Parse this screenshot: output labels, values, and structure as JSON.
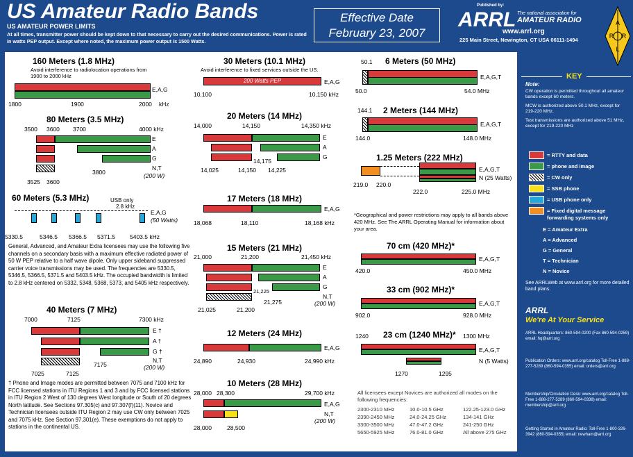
{
  "title": "US Amateur Radio Bands",
  "subtitle": "US AMATEUR POWER LIMITS",
  "intro": "At all times, transmitter power should be kept down to that necessary to carry out the desired communications. Power is rated in watts PEP output. Except where noted, the maximum power output is 1500 Watts.",
  "effective": {
    "line1": "Effective Date",
    "line2": "February 23, 2007"
  },
  "publisher": {
    "published_by": "Published by:",
    "name": "ARRL",
    "tagline1": "The national association for",
    "tagline2": "AMATEUR RADIO",
    "web": "www.arrl.org",
    "address": "225 Main Street, Newington, CT  USA  06111-1494",
    "emblem": [
      "A",
      "R",
      "R",
      "L"
    ]
  },
  "bands": {
    "b160": {
      "title": "160 Meters (1.8 MHz)",
      "note": "Avoid interference to radiolocation operations from 1900 to 2000 kHz",
      "lic": "E,A,G",
      "ticks": [
        "1800",
        "1900",
        "2000"
      ],
      "unit": "kHz"
    },
    "b80": {
      "title": "80 Meters (3.5 MHz)",
      "top": [
        "3500",
        "3600",
        "3700",
        "4000 kHz"
      ],
      "lic": [
        "E",
        "A",
        "G",
        "N,T",
        "(200 W)"
      ],
      "bottom": [
        "3525",
        "3600",
        "3800"
      ]
    },
    "b60": {
      "title": "60 Meters (5.3 MHz)",
      "usb": "USB only",
      "bw": "2.8 kHz",
      "lic": "E,A,G",
      "pw": "(50 Watts)",
      "ticks": [
        "5330.5",
        "5346.5",
        "5366.5",
        "5371.5",
        "5403.5 kHz"
      ],
      "text": "General, Advanced, and Amateur Extra licensees may use the following five channels on a secondary basis with a maximum effective radiated power of 50 W PEP relative to a half wave dipole. Only upper sideband suppressed carrier voice transmissions may be used. The frequencies are 5330.5, 5346.5, 5366.5, 5371.5 and 5403.5 kHz. The occupied bandwidth is limited to 2.8 kHz centered on 5332, 5348, 5368, 5373, and 5405 kHz respectively."
    },
    "b40": {
      "title": "40 Meters (7 MHz)",
      "top": [
        "7000",
        "7125",
        "7300  kHz"
      ],
      "lic": [
        "E †",
        "A †",
        "G †",
        "N,T",
        "(200 W)"
      ],
      "bottom": [
        "7025",
        "7125",
        "7175"
      ]
    },
    "foot": "† Phone and Image modes are permitted between 7075 and 7100 kHz for FCC licensed stations in ITU Regions 1 and 3 and by FCC licensed stations in ITU Region 2 West of 130 degrees West longitude or South of 20 degrees North latitude. See Sections 97.305(c) and 97.307(f)(11). Novice and Technician licensees outside ITU Region 2 may use CW only between 7025 and 7075 kHz. See Section 97.301(e). These exemptions do not apply to stations in the continental US.",
    "b30": {
      "title": "30 Meters (10.1 MHz)",
      "note": "Avoid interference to fixed services outside the US.",
      "bar": "200 Watts PEP",
      "lic": "E,A,G",
      "ticks": [
        "10,100",
        "10,150 kHz"
      ]
    },
    "b20": {
      "title": "20 Meters (14 MHz)",
      "top": [
        "14,000",
        "14,150",
        "14,350 kHz"
      ],
      "lic": [
        "E",
        "A",
        "G"
      ],
      "bottom": [
        "14,025",
        "14,150",
        "14,175",
        "14,225"
      ]
    },
    "b17": {
      "title": "17 Meters (18 MHz)",
      "lic": "E,A,G",
      "ticks": [
        "18,068",
        "18,110",
        "18,168 kHz"
      ]
    },
    "b15": {
      "title": "15 Meters (21 MHz)",
      "top": [
        "21,000",
        "21,200",
        "21,450 kHz"
      ],
      "lic": [
        "E",
        "A",
        "G",
        "N,T",
        "(200 W)"
      ],
      "bottom": [
        "21,025",
        "21,200",
        "21,225",
        "21,275"
      ]
    },
    "b12": {
      "title": "12 Meters (24 MHz)",
      "lic": "E,A,G",
      "ticks": [
        "24,890",
        "24,930",
        "24,990 kHz"
      ]
    },
    "b10": {
      "title": "10 Meters (28 MHz)",
      "top": [
        "28,000",
        "28,300",
        "29,700 kHz"
      ],
      "lic": [
        "E,A,G",
        "N,T",
        "(200 W)"
      ],
      "bottom": [
        "28,000",
        "28,500"
      ]
    },
    "b6": {
      "title": "6 Meters (50 MHz)",
      "lic": "E,A,G,T",
      "ticks": [
        "50.1",
        "50.0",
        "54.0 MHz"
      ]
    },
    "b2": {
      "title": "2 Meters (144 MHz)",
      "lic": "E,A,G,T",
      "ticks": [
        "144.1",
        "144.0",
        "148.0 MHz"
      ]
    },
    "b125": {
      "title": "1.25 Meters (222 MHz)",
      "lic": [
        "E,A,G,T",
        "N (25 Watts)"
      ],
      "ticks": [
        "219.0",
        "220.0",
        "222.0",
        "225.0 MHz"
      ]
    },
    "geo": "*Geographical and power restrictions may apply to all bands above 420 MHz. See The ARRL Operating Manual for information about your area.",
    "b70": {
      "title": "70 cm (420 MHz)*",
      "lic": "E,A,G,T",
      "ticks": [
        "420.0",
        "450.0 MHz"
      ]
    },
    "b33": {
      "title": "33 cm (902 MHz)*",
      "lic": "E,A,G,T",
      "ticks": [
        "902.0",
        "928.0  MHz"
      ]
    },
    "b23": {
      "title": "23 cm (1240 MHz)*",
      "top": [
        "1240",
        "1300  MHz"
      ],
      "lic": [
        "E,A,G,T",
        "N (5 Watts)"
      ],
      "bottom": [
        "1270",
        "1295"
      ]
    }
  },
  "above": {
    "intro": "All licensees except Novices are authorized all modes on the following frequencies:",
    "rows": [
      [
        "2300-2310 MHz",
        "10.0-10.5 GHz",
        "122.25-123.0 GHz"
      ],
      [
        "2390-2450 MHz",
        "24.0-24.25 GHz",
        "134-141 GHz"
      ],
      [
        "3300-3500 MHz",
        "47.0-47.2 GHz",
        "241-250 GHz"
      ],
      [
        "5650-5925 MHz",
        "76.0-81.0 GHz",
        "All above 275 GHz"
      ]
    ]
  },
  "key": {
    "title": "KEY",
    "note_label": "Note:",
    "notes": [
      "CW operation is permitted throughout all amateur bands except 60 meters.",
      "MCW is authorized above 50.1 MHz, except for 219-220 MHz.",
      "Test transmissions are authorized above 51 MHz, except for 219-220 MHz"
    ],
    "items": [
      "= RTTY and data",
      "= phone and image",
      "= CW only",
      "= SSB phone",
      "= USB phone only",
      "= Fixed digital message forwarding systems only"
    ],
    "lic": [
      "E = Amateur Extra",
      "A = Advanced",
      "G = General",
      "T = Technician",
      "N = Novice"
    ],
    "see": "See ARRLWeb at www.arrl.org for more detailed band plans.",
    "colors": {
      "rtty": "#d8393b",
      "phone": "#3b9a48",
      "ssb": "#f7e01c",
      "usb": "#24a7d9",
      "digital": "#f28f22"
    }
  },
  "service": {
    "arrl": "ARRL",
    "slogan": "We're At Your Service",
    "blocks": [
      "ARRL Headquarters: 860-594-0200 (Fax 860-594-0259) email: hq@arrl.org",
      "Publication Orders: www.arrl.org/catalog Toll-Free 1-888-277-5289 (860-594-0355) email: orders@arrl.org",
      "Membership/Circulation Desk: www.arrl.org/catalog Toll-Free 1-888-277-5289 (860-594-0338) email: membership@arrl.org",
      "Getting Started in Amateur Radio: Toll-Free 1-800-326-3942 (860-594-0355) email: newham@arrl.org"
    ]
  }
}
